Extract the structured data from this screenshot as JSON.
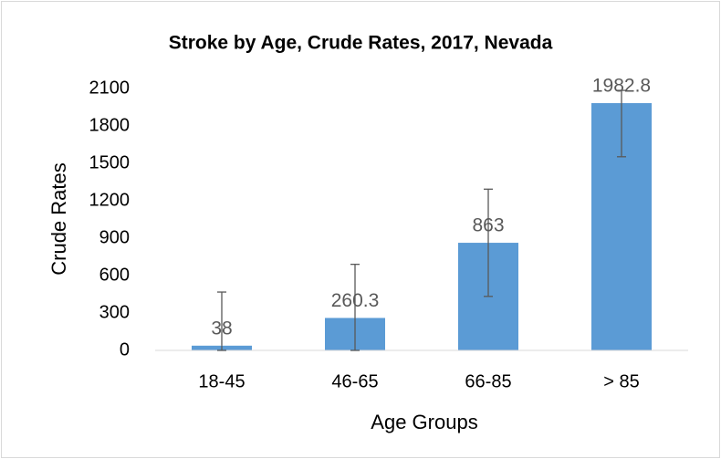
{
  "chart_data": {
    "type": "bar",
    "title": "Stroke by Age, Crude Rates, 2017, Nevada",
    "x_label": "Age Groups",
    "y_label": "Crude Rates",
    "categories": [
      "18-45",
      "46-65",
      "66-85",
      "> 85"
    ],
    "values": [
      38,
      260.3,
      863,
      1982.8
    ],
    "errors_plus": [
      430,
      430,
      430,
      102
    ],
    "errors_minus": [
      38,
      260.3,
      430,
      430
    ],
    "color": "#5b9bd5",
    "ylim": [
      0,
      2100
    ],
    "yticks": [
      0,
      300,
      600,
      900,
      1200,
      1500,
      1800,
      2100
    ],
    "grid": false
  }
}
